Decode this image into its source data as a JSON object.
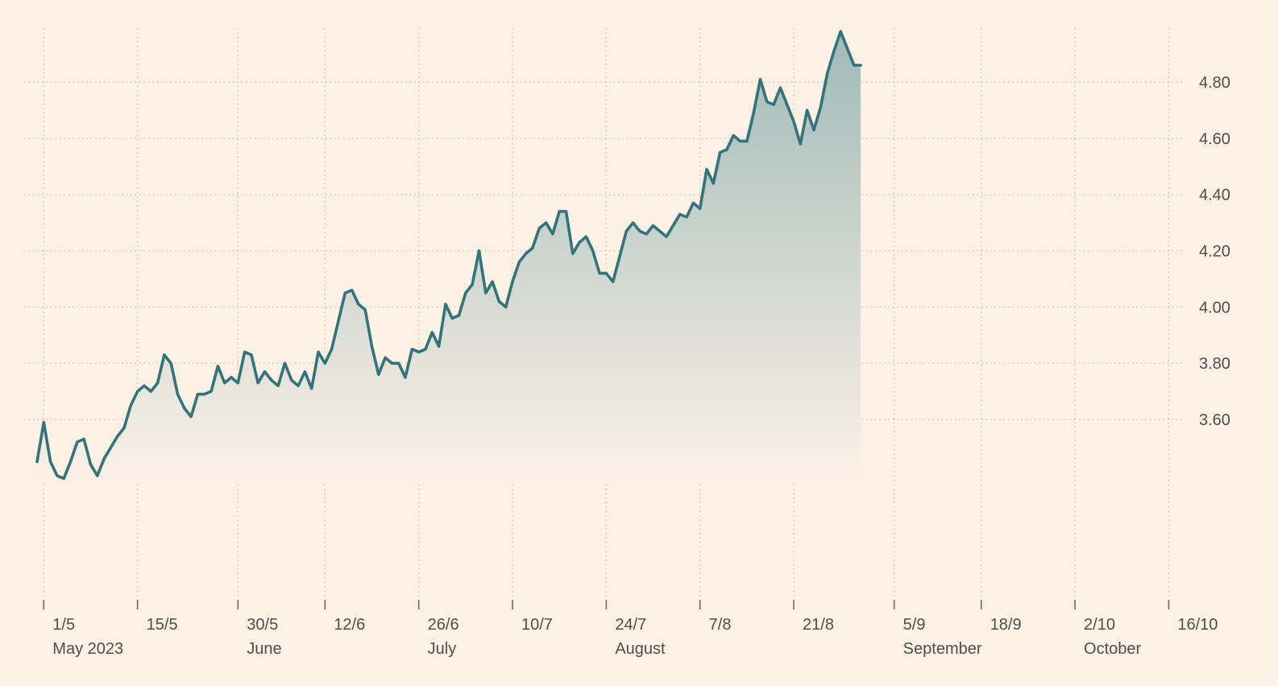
{
  "chart_data": {
    "type": "area",
    "title": "",
    "xlabel": "",
    "ylabel": "",
    "ylim": [
      3.0,
      5.0
    ],
    "y_ticks": [
      "3.60",
      "3.80",
      "4.00",
      "4.20",
      "4.40",
      "4.60",
      "4.80"
    ],
    "x_start": "2023-04-30",
    "x_end": "2023-10-18",
    "x_ticks": [
      {
        "label": "1/5",
        "date": "2023-05-01"
      },
      {
        "label": "15/5",
        "date": "2023-05-15"
      },
      {
        "label": "30/5",
        "date": "2023-05-30"
      },
      {
        "label": "12/6",
        "date": "2023-06-12"
      },
      {
        "label": "26/6",
        "date": "2023-06-26"
      },
      {
        "label": "10/7",
        "date": "2023-07-10"
      },
      {
        "label": "24/7",
        "date": "2023-07-24"
      },
      {
        "label": "7/8",
        "date": "2023-08-07"
      },
      {
        "label": "21/8",
        "date": "2023-08-21"
      },
      {
        "label": "5/9",
        "date": "2023-09-05"
      },
      {
        "label": "18/9",
        "date": "2023-09-18"
      },
      {
        "label": "2/10",
        "date": "2023-10-02"
      },
      {
        "label": "16/10",
        "date": "2023-10-16"
      }
    ],
    "months": [
      {
        "label": "May 2023",
        "at": "1/5"
      },
      {
        "label": "June",
        "at": "30/5"
      },
      {
        "label": "July",
        "at": "26/6"
      },
      {
        "label": "August",
        "at": "24/7"
      },
      {
        "label": "September",
        "at": "5/9"
      },
      {
        "label": "October",
        "at": "2/10"
      }
    ],
    "grid": true,
    "area_fill": true,
    "colors": {
      "line": "#33737a",
      "fill_top": "#9fbab8",
      "background": "#fdf1e6",
      "grid": "#c9c1b8",
      "text": "#4f4d4b"
    },
    "series": [
      {
        "points": [
          [
            "2023-04-30",
            3.45
          ],
          [
            "2023-05-01",
            3.59
          ],
          [
            "2023-05-02",
            3.45
          ],
          [
            "2023-05-03",
            3.4
          ],
          [
            "2023-05-04",
            3.39
          ],
          [
            "2023-05-05",
            3.45
          ],
          [
            "2023-05-06",
            3.52
          ],
          [
            "2023-05-07",
            3.53
          ],
          [
            "2023-05-08",
            3.44
          ],
          [
            "2023-05-09",
            3.4
          ],
          [
            "2023-05-10",
            3.46
          ],
          [
            "2023-05-11",
            3.5
          ],
          [
            "2023-05-12",
            3.54
          ],
          [
            "2023-05-13",
            3.57
          ],
          [
            "2023-05-14",
            3.65
          ],
          [
            "2023-05-15",
            3.7
          ],
          [
            "2023-05-16",
            3.72
          ],
          [
            "2023-05-17",
            3.7
          ],
          [
            "2023-05-18",
            3.73
          ],
          [
            "2023-05-19",
            3.83
          ],
          [
            "2023-05-20",
            3.8
          ],
          [
            "2023-05-21",
            3.69
          ],
          [
            "2023-05-22",
            3.64
          ],
          [
            "2023-05-23",
            3.61
          ],
          [
            "2023-05-24",
            3.69
          ],
          [
            "2023-05-25",
            3.69
          ],
          [
            "2023-05-26",
            3.7
          ],
          [
            "2023-05-27",
            3.79
          ],
          [
            "2023-05-28",
            3.73
          ],
          [
            "2023-05-29",
            3.75
          ],
          [
            "2023-05-30",
            3.73
          ],
          [
            "2023-05-31",
            3.84
          ],
          [
            "2023-06-01",
            3.83
          ],
          [
            "2023-06-02",
            3.73
          ],
          [
            "2023-06-03",
            3.77
          ],
          [
            "2023-06-04",
            3.74
          ],
          [
            "2023-06-05",
            3.72
          ],
          [
            "2023-06-06",
            3.8
          ],
          [
            "2023-06-07",
            3.74
          ],
          [
            "2023-06-08",
            3.72
          ],
          [
            "2023-06-09",
            3.77
          ],
          [
            "2023-06-10",
            3.71
          ],
          [
            "2023-06-11",
            3.84
          ],
          [
            "2023-06-12",
            3.8
          ],
          [
            "2023-06-13",
            3.85
          ],
          [
            "2023-06-14",
            3.95
          ],
          [
            "2023-06-15",
            4.05
          ],
          [
            "2023-06-16",
            4.06
          ],
          [
            "2023-06-17",
            4.01
          ],
          [
            "2023-06-18",
            3.99
          ],
          [
            "2023-06-19",
            3.86
          ],
          [
            "2023-06-20",
            3.76
          ],
          [
            "2023-06-21",
            3.82
          ],
          [
            "2023-06-22",
            3.8
          ],
          [
            "2023-06-23",
            3.8
          ],
          [
            "2023-06-24",
            3.75
          ],
          [
            "2023-06-25",
            3.85
          ],
          [
            "2023-06-26",
            3.84
          ],
          [
            "2023-06-27",
            3.85
          ],
          [
            "2023-06-28",
            3.91
          ],
          [
            "2023-06-29",
            3.86
          ],
          [
            "2023-06-30",
            4.01
          ],
          [
            "2023-07-01",
            3.96
          ],
          [
            "2023-07-02",
            3.97
          ],
          [
            "2023-07-03",
            4.05
          ],
          [
            "2023-07-04",
            4.08
          ],
          [
            "2023-07-05",
            4.2
          ],
          [
            "2023-07-06",
            4.05
          ],
          [
            "2023-07-07",
            4.09
          ],
          [
            "2023-07-08",
            4.02
          ],
          [
            "2023-07-09",
            4.0
          ],
          [
            "2023-07-10",
            4.09
          ],
          [
            "2023-07-11",
            4.16
          ],
          [
            "2023-07-12",
            4.19
          ],
          [
            "2023-07-13",
            4.21
          ],
          [
            "2023-07-14",
            4.28
          ],
          [
            "2023-07-15",
            4.3
          ],
          [
            "2023-07-16",
            4.26
          ],
          [
            "2023-07-17",
            4.34
          ],
          [
            "2023-07-18",
            4.34
          ],
          [
            "2023-07-19",
            4.19
          ],
          [
            "2023-07-20",
            4.23
          ],
          [
            "2023-07-21",
            4.25
          ],
          [
            "2023-07-22",
            4.2
          ],
          [
            "2023-07-23",
            4.12
          ],
          [
            "2023-07-24",
            4.12
          ],
          [
            "2023-07-25",
            4.09
          ],
          [
            "2023-07-26",
            4.18
          ],
          [
            "2023-07-27",
            4.27
          ],
          [
            "2023-07-28",
            4.3
          ],
          [
            "2023-07-29",
            4.27
          ],
          [
            "2023-07-30",
            4.26
          ],
          [
            "2023-07-31",
            4.29
          ],
          [
            "2023-08-01",
            4.27
          ],
          [
            "2023-08-02",
            4.25
          ],
          [
            "2023-08-03",
            4.29
          ],
          [
            "2023-08-04",
            4.33
          ],
          [
            "2023-08-05",
            4.32
          ],
          [
            "2023-08-06",
            4.37
          ],
          [
            "2023-08-07",
            4.35
          ],
          [
            "2023-08-08",
            4.49
          ],
          [
            "2023-08-09",
            4.44
          ],
          [
            "2023-08-10",
            4.55
          ],
          [
            "2023-08-11",
            4.56
          ],
          [
            "2023-08-12",
            4.61
          ],
          [
            "2023-08-13",
            4.59
          ],
          [
            "2023-08-14",
            4.59
          ],
          [
            "2023-08-15",
            4.69
          ],
          [
            "2023-08-16",
            4.81
          ],
          [
            "2023-08-17",
            4.73
          ],
          [
            "2023-08-18",
            4.72
          ],
          [
            "2023-08-19",
            4.78
          ],
          [
            "2023-08-20",
            4.72
          ],
          [
            "2023-08-21",
            4.66
          ],
          [
            "2023-08-22",
            4.58
          ],
          [
            "2023-08-23",
            4.7
          ],
          [
            "2023-08-24",
            4.63
          ],
          [
            "2023-08-25",
            4.71
          ],
          [
            "2023-08-26",
            4.83
          ],
          [
            "2023-08-27",
            4.91
          ],
          [
            "2023-08-28",
            4.98
          ],
          [
            "2023-08-29",
            4.92
          ],
          [
            "2023-08-30",
            4.86
          ],
          [
            "2023-08-31",
            4.86
          ]
        ]
      }
    ]
  }
}
